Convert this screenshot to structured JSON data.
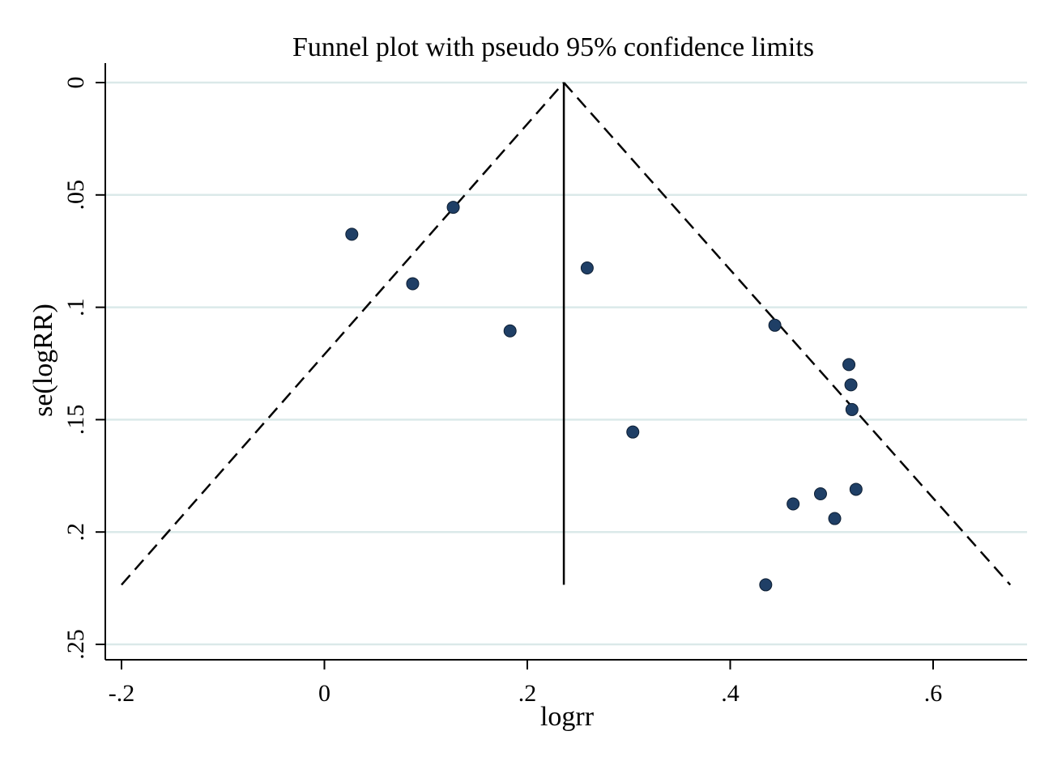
{
  "chart_data": {
    "type": "scatter",
    "title": "Funnel plot with pseudo 95% confidence limits",
    "xlabel": "logrr",
    "ylabel": "se(logRR)",
    "xlim": [
      -0.2,
      0.69
    ],
    "ylim": [
      0,
      0.255
    ],
    "y_reversed": true,
    "x_ticks": [
      -0.2,
      0,
      0.2,
      0.4,
      0.6
    ],
    "x_tick_labels": [
      "-.2",
      "0",
      ".2",
      ".4",
      ".6"
    ],
    "y_ticks": [
      0,
      0.05,
      0.1,
      0.15,
      0.2,
      0.25
    ],
    "y_tick_labels": [
      "0",
      ".05",
      ".1",
      ".15",
      ".2",
      ".25"
    ],
    "gridlines": "horizontal",
    "pooled_estimate": 0.236,
    "pseudo_ci_lower": {
      "x": [
        -0.2,
        0.236
      ],
      "y": [
        0.2235,
        0
      ]
    },
    "pseudo_ci_upper": {
      "x": [
        0.236,
        0.676
      ],
      "y": [
        0,
        0.2235
      ]
    },
    "points": {
      "x": [
        0.027,
        0.087,
        0.127,
        0.183,
        0.259,
        0.304,
        0.444,
        0.517,
        0.519,
        0.52,
        0.524,
        0.489,
        0.462,
        0.503,
        0.435
      ],
      "y": [
        0.0675,
        0.0895,
        0.0555,
        0.1105,
        0.0825,
        0.1555,
        0.108,
        0.1255,
        0.1345,
        0.1455,
        0.181,
        0.183,
        0.1875,
        0.194,
        0.2235
      ]
    },
    "colors": {
      "point": "#1f3f66",
      "grid": "#dbe9e9",
      "line": "#000000"
    }
  }
}
